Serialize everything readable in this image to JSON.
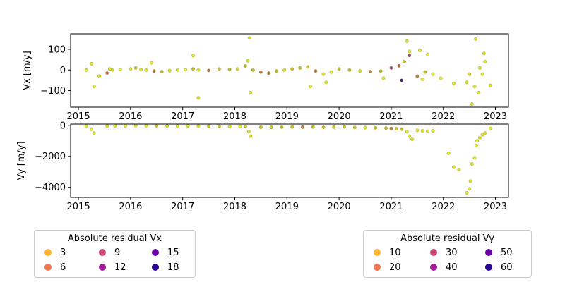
{
  "chart_data": [
    {
      "type": "scatter",
      "ylabel": "Vx [m/y]",
      "xlim": [
        2014.85,
        2023.25
      ],
      "ylim": [
        -180,
        175
      ],
      "x_ticks": [
        2015,
        2016,
        2017,
        2018,
        2019,
        2020,
        2021,
        2022,
        2023
      ],
      "y_ticks": [
        -100,
        0,
        100
      ],
      "series": [
        {
          "x": [
            2015.15,
            2015.25,
            2015.3,
            2015.55,
            2015.65,
            2015.8,
            2016.0,
            2016.1,
            2016.2,
            2016.3,
            2016.45,
            2016.6,
            2016.75,
            2016.9,
            2017.05,
            2017.2,
            2017.3,
            2017.5,
            2017.7,
            2017.9,
            2018.05,
            2018.2,
            2018.25,
            2018.35,
            2018.5,
            2018.65,
            2018.8,
            2018.95,
            2019.1,
            2019.25,
            2019.4,
            2019.55,
            2019.7,
            2019.85,
            2020.0,
            2020.2,
            2020.4,
            2020.6,
            2020.8,
            2021.0,
            2021.15,
            2021.25,
            2021.35,
            2021.5,
            2021.65,
            2021.8,
            2021.95,
            2022.2,
            2022.5,
            2022.6,
            2022.7,
            2022.75,
            2022.8,
            2022.9,
            2017.2,
            2017.3,
            2018.28,
            2018.3,
            2019.45,
            2019.75,
            2020.85,
            2021.3,
            2021.35,
            2021.55,
            2021.7,
            2022.55,
            2022.62,
            2022.78,
            2015.4,
            2015.6,
            2016.4,
            2021.2,
            2021.6,
            2022.45,
            2022.68
          ],
          "y": [
            0,
            30,
            -80,
            -15,
            0,
            2,
            5,
            10,
            3,
            0,
            -5,
            -8,
            -3,
            0,
            2,
            5,
            0,
            -2,
            5,
            3,
            5,
            20,
            45,
            0,
            -10,
            -15,
            -5,
            0,
            5,
            10,
            15,
            -5,
            -20,
            -10,
            5,
            0,
            -5,
            -8,
            -5,
            10,
            20,
            40,
            70,
            -30,
            -10,
            -20,
            -40,
            -65,
            -20,
            -80,
            10,
            -20,
            40,
            -75,
            70,
            -135,
            155,
            -110,
            -80,
            -60,
            -40,
            140,
            90,
            95,
            75,
            -165,
            150,
            80,
            -30,
            5,
            35,
            -50,
            -45,
            -60,
            -110
          ],
          "residual": [
            4,
            5,
            3,
            12,
            5,
            3,
            6,
            8,
            4,
            6,
            10,
            9,
            6,
            4,
            5,
            7,
            5,
            11,
            9,
            8,
            6,
            9,
            5,
            7,
            12,
            10,
            8,
            6,
            9,
            7,
            8,
            10,
            6,
            5,
            9,
            7,
            6,
            10,
            8,
            13,
            12,
            9,
            14,
            10,
            8,
            6,
            5,
            4,
            4,
            3,
            5,
            3,
            5,
            4,
            4,
            3,
            4,
            3,
            5,
            4,
            5,
            4,
            3,
            4,
            3,
            4,
            4,
            3,
            3,
            4,
            3,
            18,
            6,
            3,
            3
          ]
        }
      ]
    },
    {
      "type": "scatter",
      "ylabel": "Vy [m/y]",
      "xlim": [
        2014.85,
        2023.25
      ],
      "ylim": [
        -4650,
        80
      ],
      "x_ticks": [
        2015,
        2016,
        2017,
        2018,
        2019,
        2020,
        2021,
        2022,
        2023
      ],
      "y_ticks": [
        -4000,
        -2000,
        0
      ],
      "series": [
        {
          "x": [
            2015.15,
            2015.25,
            2015.3,
            2015.55,
            2015.7,
            2015.9,
            2016.1,
            2016.3,
            2016.5,
            2016.7,
            2016.9,
            2017.1,
            2017.3,
            2017.5,
            2017.7,
            2017.9,
            2018.1,
            2018.2,
            2018.27,
            2018.3,
            2018.5,
            2018.7,
            2018.9,
            2019.1,
            2019.3,
            2019.5,
            2019.7,
            2019.9,
            2020.1,
            2020.3,
            2020.5,
            2020.7,
            2020.9,
            2021.0,
            2021.1,
            2021.2,
            2021.3,
            2021.35,
            2021.4,
            2021.5,
            2021.6,
            2021.7,
            2021.8,
            2022.1,
            2022.2,
            2022.3,
            2022.45,
            2022.5,
            2022.52,
            2022.55,
            2022.6,
            2022.63,
            2022.65,
            2022.7,
            2022.75,
            2022.8,
            2022.9
          ],
          "y": [
            -50,
            -250,
            -500,
            -40,
            -30,
            -30,
            -20,
            -20,
            -30,
            -40,
            -40,
            -40,
            -50,
            -60,
            -70,
            -70,
            -70,
            -80,
            -400,
            -700,
            -120,
            -130,
            -120,
            -110,
            -120,
            -110,
            -130,
            -110,
            -100,
            -140,
            -150,
            -160,
            -180,
            -200,
            -220,
            -250,
            -400,
            -700,
            -900,
            -320,
            -350,
            -380,
            -350,
            -1800,
            -2700,
            -2850,
            -4350,
            -4100,
            -3600,
            -2500,
            -2100,
            -1300,
            -1000,
            -800,
            -600,
            -500,
            -200
          ],
          "residual": [
            10,
            12,
            8,
            15,
            10,
            12,
            18,
            20,
            22,
            15,
            18,
            20,
            16,
            25,
            22,
            18,
            20,
            28,
            10,
            12,
            30,
            25,
            22,
            28,
            35,
            30,
            32,
            25,
            30,
            22,
            18,
            25,
            30,
            35,
            28,
            22,
            20,
            15,
            12,
            18,
            15,
            20,
            14,
            8,
            10,
            9,
            12,
            10,
            11,
            10,
            9,
            12,
            10,
            14,
            12,
            10,
            9
          ]
        }
      ]
    }
  ],
  "legend_vx": {
    "title": "Absolute residual Vx",
    "items": [
      {
        "label": "3",
        "color": "#fdb32f"
      },
      {
        "label": "6",
        "color": "#ec7853"
      },
      {
        "label": "9",
        "color": "#ce4a76"
      },
      {
        "label": "12",
        "color": "#a1209a"
      },
      {
        "label": "15",
        "color": "#6a00a8"
      },
      {
        "label": "18",
        "color": "#2a0593"
      }
    ]
  },
  "legend_vy": {
    "title": "Absolute residual Vy",
    "items": [
      {
        "label": "10",
        "color": "#fdb32f"
      },
      {
        "label": "20",
        "color": "#ec7853"
      },
      {
        "label": "30",
        "color": "#ce4a76"
      },
      {
        "label": "40",
        "color": "#a1209a"
      },
      {
        "label": "50",
        "color": "#6a00a8"
      },
      {
        "label": "60",
        "color": "#2a0593"
      }
    ]
  }
}
